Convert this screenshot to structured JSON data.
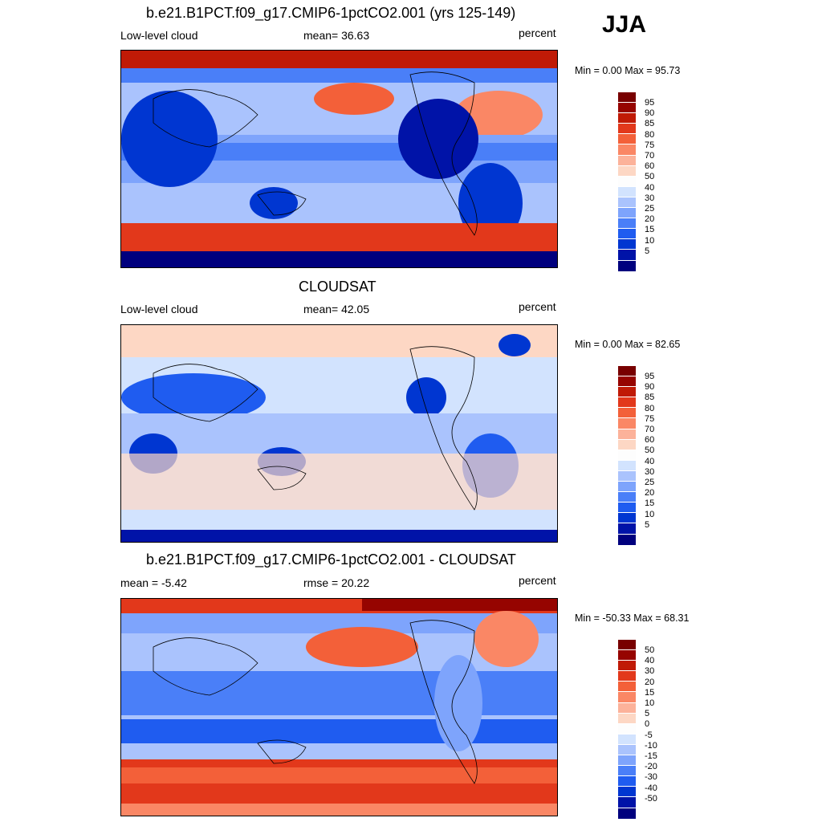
{
  "season": "JJA",
  "palette_abs": [
    "#00007e",
    "#0013a8",
    "#0036d1",
    "#1f5cf0",
    "#4a7ff8",
    "#7ea4fc",
    "#aac3fd",
    "#d2e3fe",
    "#fdfdfd",
    "#fdd7c4",
    "#fcb29a",
    "#fa8765",
    "#f36039",
    "#e2381b",
    "#c01a06",
    "#960400",
    "#780000"
  ],
  "palette_diff": [
    "#00007e",
    "#0013a8",
    "#0036d1",
    "#1f5cf0",
    "#4a7ff8",
    "#7ea4fc",
    "#aac3fd",
    "#d2e3fe",
    "#fdfdfd",
    "#fdd7c4",
    "#fcb29a",
    "#fa8765",
    "#f36039",
    "#e2381b",
    "#c01a06",
    "#960400",
    "#780000"
  ],
  "panels": [
    {
      "title": "b.e21.B1PCT.f09_g17.CMIP6-1pctCO2.001 (yrs 125-149)",
      "left_label": "Low-level cloud",
      "center_label": "mean=  36.63",
      "right_label": "percent",
      "minmax": "Min =   0.00 Max =  95.73",
      "colorbar_ticks": [
        "95",
        "90",
        "85",
        "80",
        "75",
        "70",
        "60",
        "50",
        "40",
        "30",
        "25",
        "20",
        "15",
        "10",
        "5"
      ]
    },
    {
      "title": "CLOUDSAT",
      "left_label": "Low-level cloud",
      "center_label": "mean=  42.05",
      "right_label": "percent",
      "minmax": "Min =   0.00 Max =  82.65",
      "colorbar_ticks": [
        "95",
        "90",
        "85",
        "80",
        "75",
        "70",
        "60",
        "50",
        "40",
        "30",
        "25",
        "20",
        "15",
        "10",
        "5"
      ]
    },
    {
      "title": "b.e21.B1PCT.f09_g17.CMIP6-1pctCO2.001 - CLOUDSAT",
      "left_label": "mean =  -5.42",
      "center_label": "rmse =  20.22",
      "right_label": "percent",
      "minmax": "Min = -50.33 Max =  68.31",
      "colorbar_ticks": [
        "50",
        "40",
        "30",
        "20",
        "15",
        "10",
        "5",
        "0",
        "-5",
        "-10",
        "-15",
        "-20",
        "-30",
        "-40",
        "-50"
      ]
    }
  ]
}
